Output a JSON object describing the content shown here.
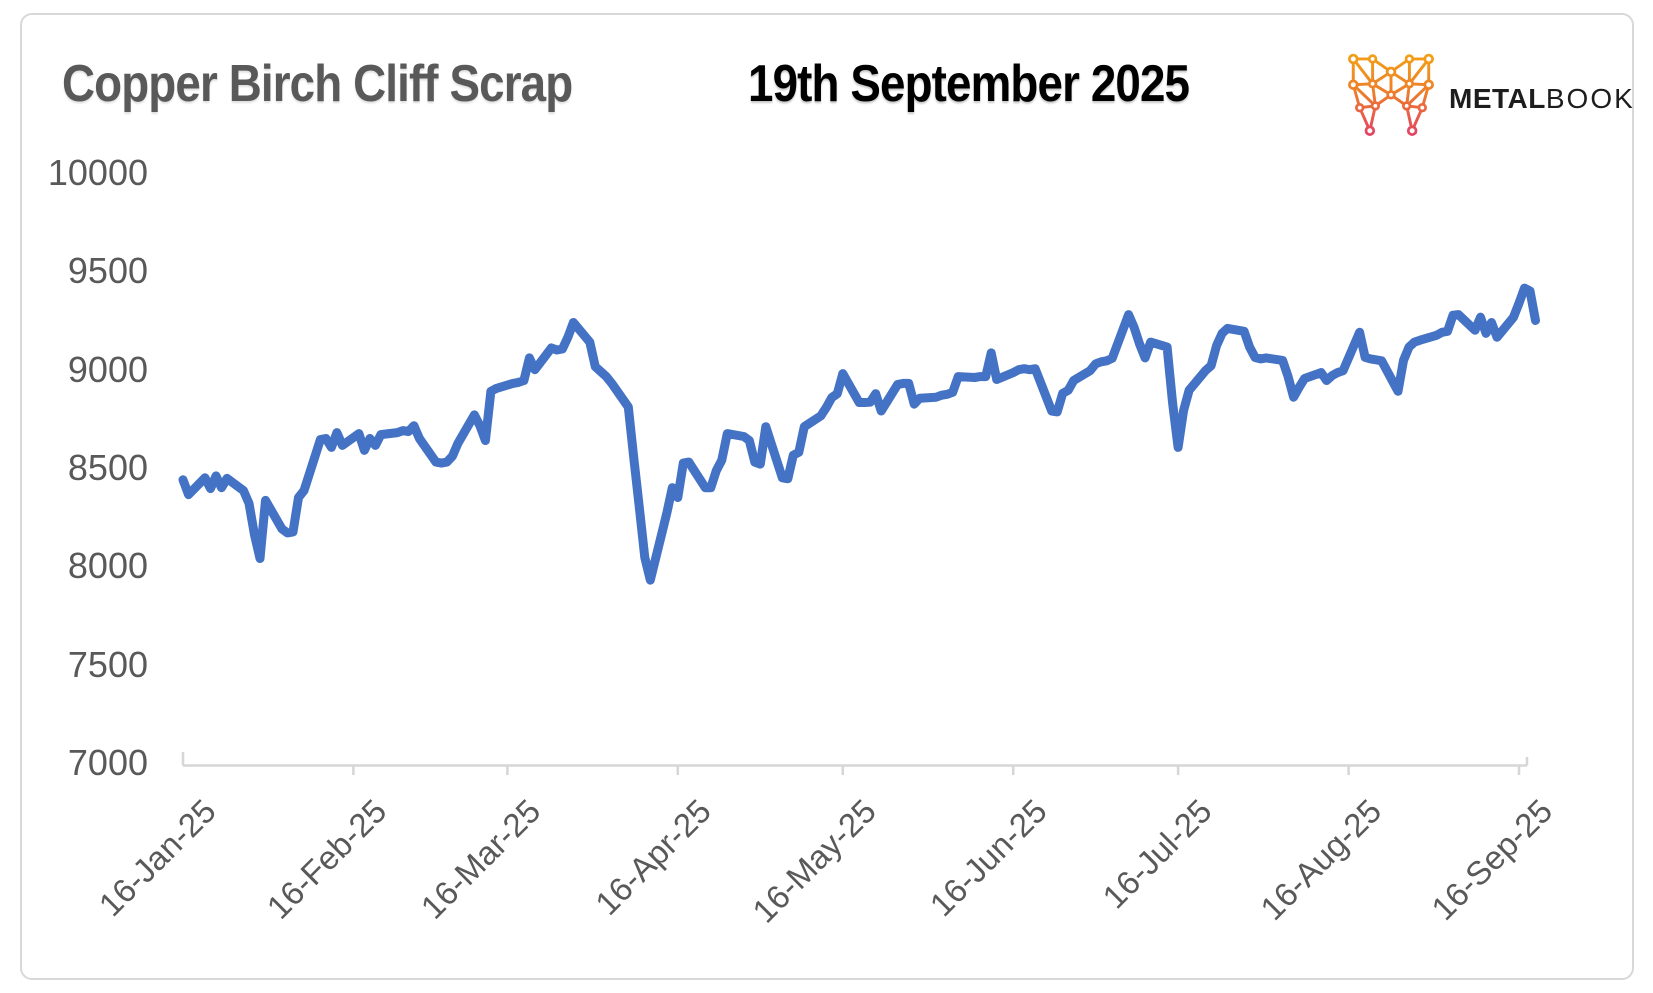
{
  "header": {
    "title": "Copper Birch Cliff Scrap",
    "date": "19th September 2025"
  },
  "brand": {
    "name_bold": "METAL",
    "name_light": "BOOK",
    "logo_top_color": "#F3A712",
    "logo_mid_color": "#ED7D2B",
    "logo_bottom_color": "#E23D6B"
  },
  "colors": {
    "line": "#4472C4",
    "axis": "#D6D6D6",
    "tick_text": "#595959",
    "title_text": "#595959",
    "date_text": "#000000"
  },
  "chart_data": {
    "type": "line",
    "title": "Copper Birch Cliff Scrap",
    "as_of": "19th September 2025",
    "xlabel": "",
    "ylabel": "",
    "ylim": [
      7000,
      10000
    ],
    "grid": false,
    "legend": "none",
    "line_color": "#4472C4",
    "y_tick_labels": [
      "10000",
      "9500",
      "9000",
      "8500",
      "8000",
      "7500",
      "7000"
    ],
    "x_tick_labels": [
      "16-Jan-25",
      "16-Feb-25",
      "16-Mar-25",
      "16-Apr-25",
      "16-May-25",
      "16-Jun-25",
      "16-Jul-25",
      "16-Aug-25",
      "16-Sep-25"
    ],
    "x": [
      "2025-01-16",
      "2025-01-17",
      "2025-01-20",
      "2025-01-21",
      "2025-01-22",
      "2025-01-23",
      "2025-01-24",
      "2025-01-27",
      "2025-01-28",
      "2025-01-29",
      "2025-01-30",
      "2025-01-31",
      "2025-02-03",
      "2025-02-04",
      "2025-02-05",
      "2025-02-06",
      "2025-02-07",
      "2025-02-10",
      "2025-02-11",
      "2025-02-12",
      "2025-02-13",
      "2025-02-14",
      "2025-02-17",
      "2025-02-18",
      "2025-02-19",
      "2025-02-20",
      "2025-02-21",
      "2025-02-24",
      "2025-02-25",
      "2025-02-26",
      "2025-02-27",
      "2025-02-28",
      "2025-03-03",
      "2025-03-04",
      "2025-03-05",
      "2025-03-06",
      "2025-03-07",
      "2025-03-10",
      "2025-03-11",
      "2025-03-12",
      "2025-03-13",
      "2025-03-14",
      "2025-03-17",
      "2025-03-18",
      "2025-03-19",
      "2025-03-20",
      "2025-03-21",
      "2025-03-24",
      "2025-03-25",
      "2025-03-26",
      "2025-03-27",
      "2025-03-28",
      "2025-03-31",
      "2025-04-01",
      "2025-04-02",
      "2025-04-03",
      "2025-04-04",
      "2025-04-07",
      "2025-04-08",
      "2025-04-09",
      "2025-04-10",
      "2025-04-11",
      "2025-04-14",
      "2025-04-15",
      "2025-04-16",
      "2025-04-17",
      "2025-04-18",
      "2025-04-21",
      "2025-04-22",
      "2025-04-23",
      "2025-04-24",
      "2025-04-25",
      "2025-04-28",
      "2025-04-29",
      "2025-04-30",
      "2025-05-01",
      "2025-05-02",
      "2025-05-05",
      "2025-05-06",
      "2025-05-07",
      "2025-05-08",
      "2025-05-09",
      "2025-05-12",
      "2025-05-13",
      "2025-05-14",
      "2025-05-15",
      "2025-05-16",
      "2025-05-19",
      "2025-05-20",
      "2025-05-21",
      "2025-05-22",
      "2025-05-23",
      "2025-05-26",
      "2025-05-27",
      "2025-05-28",
      "2025-05-29",
      "2025-05-30",
      "2025-06-02",
      "2025-06-03",
      "2025-06-04",
      "2025-06-05",
      "2025-06-06",
      "2025-06-09",
      "2025-06-10",
      "2025-06-11",
      "2025-06-12",
      "2025-06-13",
      "2025-06-16",
      "2025-06-17",
      "2025-06-18",
      "2025-06-19",
      "2025-06-20",
      "2025-06-23",
      "2025-06-24",
      "2025-06-25",
      "2025-06-26",
      "2025-06-27",
      "2025-06-30",
      "2025-07-01",
      "2025-07-02",
      "2025-07-03",
      "2025-07-04",
      "2025-07-07",
      "2025-07-08",
      "2025-07-09",
      "2025-07-10",
      "2025-07-11",
      "2025-07-14",
      "2025-07-15",
      "2025-07-16",
      "2025-07-17",
      "2025-07-18",
      "2025-07-21",
      "2025-07-22",
      "2025-07-23",
      "2025-07-24",
      "2025-07-25",
      "2025-07-28",
      "2025-07-29",
      "2025-07-30",
      "2025-07-31",
      "2025-08-01",
      "2025-08-04",
      "2025-08-05",
      "2025-08-06",
      "2025-08-07",
      "2025-08-08",
      "2025-08-11",
      "2025-08-12",
      "2025-08-13",
      "2025-08-14",
      "2025-08-15",
      "2025-08-18",
      "2025-08-19",
      "2025-08-20",
      "2025-08-21",
      "2025-08-22",
      "2025-08-25",
      "2025-08-26",
      "2025-08-27",
      "2025-08-28",
      "2025-08-29",
      "2025-09-01",
      "2025-09-02",
      "2025-09-03",
      "2025-09-04",
      "2025-09-05",
      "2025-09-08",
      "2025-09-09",
      "2025-09-10",
      "2025-09-11",
      "2025-09-12",
      "2025-09-15",
      "2025-09-16",
      "2025-09-17",
      "2025-09-18",
      "2025-09-19"
    ],
    "series": [
      {
        "name": "Copper Birch Cliff Scrap",
        "values": [
          8440,
          8365,
          8450,
          8395,
          8460,
          8400,
          8447,
          8385,
          8320,
          8160,
          8040,
          8335,
          8190,
          8170,
          8175,
          8350,
          8385,
          8645,
          8650,
          8605,
          8680,
          8615,
          8675,
          8590,
          8650,
          8615,
          8670,
          8680,
          8690,
          8685,
          8715,
          8650,
          8530,
          8525,
          8530,
          8560,
          8625,
          8770,
          8715,
          8640,
          8890,
          8905,
          8930,
          8935,
          8945,
          9060,
          9000,
          9110,
          9100,
          9105,
          9165,
          9240,
          9140,
          9015,
          8990,
          8965,
          8930,
          8810,
          8550,
          8300,
          8045,
          7930,
          8270,
          8400,
          8350,
          8525,
          8530,
          8400,
          8400,
          8487,
          8540,
          8675,
          8660,
          8640,
          8530,
          8520,
          8710,
          8450,
          8445,
          8565,
          8580,
          8710,
          8765,
          8808,
          8858,
          8878,
          8980,
          8833,
          8833,
          8835,
          8878,
          8790,
          8925,
          8930,
          8930,
          8825,
          8855,
          8860,
          8870,
          8875,
          8885,
          8965,
          8960,
          8965,
          8965,
          9085,
          8950,
          8985,
          9000,
          9005,
          9000,
          9005,
          8790,
          8785,
          8880,
          8895,
          8945,
          8995,
          9030,
          9040,
          9045,
          9058,
          9280,
          9215,
          9130,
          9060,
          9140,
          9115,
          8830,
          8605,
          8793,
          8895,
          8996,
          9020,
          9123,
          9185,
          9210,
          9195,
          9115,
          9062,
          9055,
          9060,
          9047,
          8965,
          8860,
          8910,
          8955,
          8985,
          8945,
          8970,
          8985,
          8995,
          9190,
          9063,
          9055,
          9050,
          9045,
          8890,
          9047,
          9115,
          9140,
          9150,
          9175,
          9190,
          9195,
          9277,
          9280,
          9200,
          9267,
          9185,
          9240,
          9165,
          9267,
          9338,
          9415,
          9400,
          9250
        ]
      }
    ]
  }
}
